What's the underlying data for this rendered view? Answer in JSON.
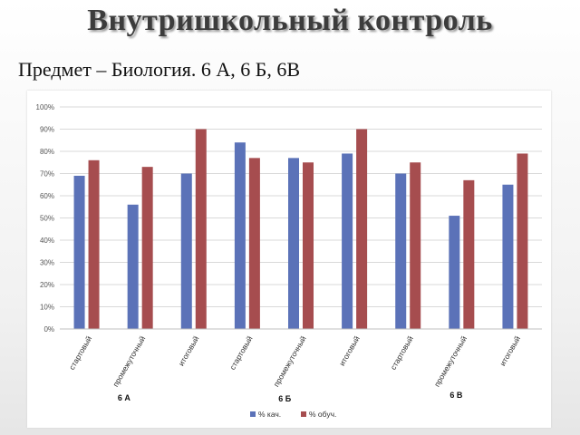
{
  "slide": {
    "title": "Внутришкольный контроль",
    "subtitle": "Предмет – Биология. 6 А, 6 Б, 6В"
  },
  "chart_data": {
    "type": "bar",
    "categories": [
      "стартовый",
      "промежуточный",
      "итоговый",
      "стартовый",
      "промежуточный",
      "итоговый",
      "стартовый",
      "промежуточный",
      "итоговый"
    ],
    "groups": [
      {
        "label": "6 А",
        "start": 0,
        "end": 2
      },
      {
        "label": "6 Б",
        "start": 3,
        "end": 5
      },
      {
        "label": "6 В",
        "start": 6,
        "end": 8
      }
    ],
    "series": [
      {
        "name": "% кач.",
        "color": "#5b72b8",
        "values": [
          69,
          56,
          70,
          84,
          77,
          79,
          70,
          51,
          65
        ]
      },
      {
        "name": "% обуч.",
        "color": "#a64d4f",
        "values": [
          76,
          73,
          90,
          77,
          75,
          90,
          75,
          67,
          79
        ]
      }
    ],
    "ylim": [
      0,
      100
    ],
    "yticks": [
      "0%",
      "10%",
      "20%",
      "30%",
      "40%",
      "50%",
      "60%",
      "70%",
      "80%",
      "90%",
      "100%"
    ],
    "grid": true,
    "legend": "bottom"
  }
}
